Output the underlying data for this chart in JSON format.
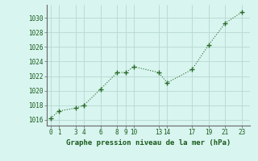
{
  "x": [
    0,
    1,
    3,
    4,
    6,
    8,
    9,
    10,
    13,
    14,
    17,
    19,
    21,
    23
  ],
  "y": [
    1016.2,
    1017.2,
    1017.6,
    1018.0,
    1020.2,
    1022.5,
    1022.5,
    1023.3,
    1022.5,
    1021.1,
    1022.9,
    1026.3,
    1029.3,
    1030.8
  ],
  "line_color": "#2a6b2a",
  "marker": "+",
  "marker_size": 4,
  "bg_color": "#d8f5f0",
  "grid_color": "#b8d8d0",
  "xlabel": "Graphe pression niveau de la mer (hPa)",
  "xlabel_color": "#1a5a1a",
  "xlabel_fontsize": 6.5,
  "tick_fontsize": 5.5,
  "xticks": [
    0,
    1,
    3,
    4,
    6,
    8,
    9,
    10,
    13,
    14,
    17,
    19,
    21,
    23
  ],
  "yticks": [
    1016,
    1018,
    1020,
    1022,
    1024,
    1026,
    1028,
    1030
  ],
  "ylim": [
    1015.2,
    1031.8
  ],
  "xlim": [
    -0.5,
    24.0
  ],
  "spine_color": "#666666",
  "linewidth": 0.8
}
